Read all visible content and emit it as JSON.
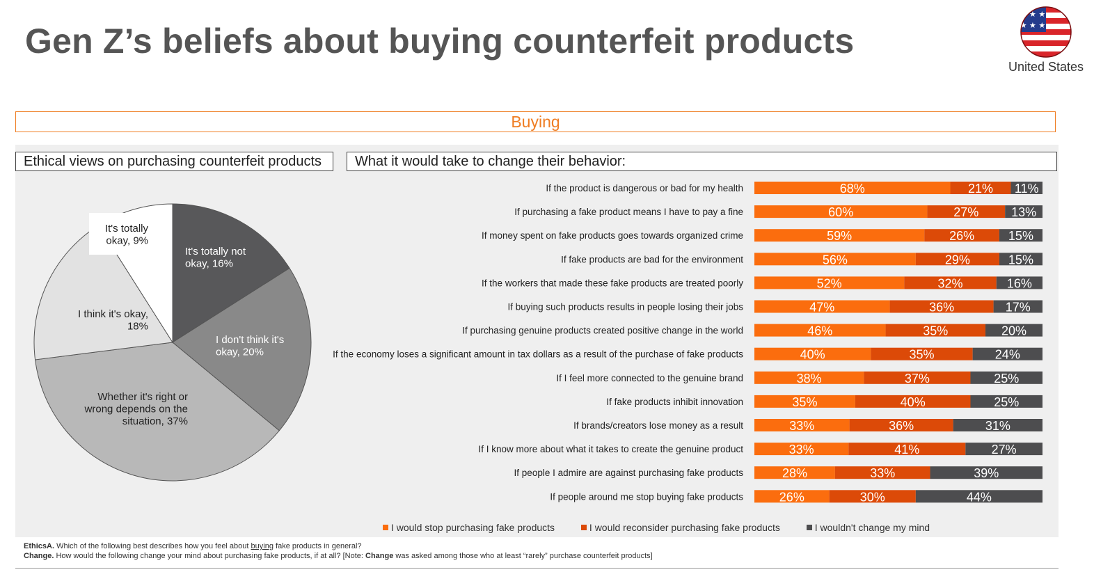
{
  "title": "Gen Z’s beliefs about buying counterfeit products",
  "country": "United States",
  "section": "Buying",
  "colors": {
    "accent": "#ef7d22",
    "stop": "#fb6d0e",
    "reconsider": "#dc4a08",
    "no_change": "#4d4d4f"
  },
  "left_panel": {
    "heading": "Ethical views on purchasing counterfeit products"
  },
  "right_panel": {
    "heading": "What it would take to change their behavior:"
  },
  "chart_data": [
    {
      "type": "pie",
      "slices": [
        {
          "label": "It's totally not okay",
          "value": 16,
          "color": "#58585a"
        },
        {
          "label": "I don't think it's okay",
          "value": 20,
          "color": "#898989"
        },
        {
          "label": "Whether it's right or wrong depends on the situation",
          "value": 37,
          "color": "#b8b8b8"
        },
        {
          "label": "I think it's okay",
          "value": 18,
          "color": "#e2e2e2"
        },
        {
          "label": "It's totally okay",
          "value": 9,
          "color": "#ffffff"
        }
      ],
      "slice_labels": [
        [
          "It's totally not",
          "okay, 16%"
        ],
        [
          "I don't think it's",
          "okay, 20%"
        ],
        [
          "Whether it's right or",
          "wrong depends on the",
          "situation, 37%"
        ],
        [
          "I think it's okay,",
          "18%"
        ],
        [
          "It's totally",
          "okay, 9%"
        ]
      ]
    },
    {
      "type": "bar",
      "orientation": "horizontal",
      "stacked": true,
      "categories": [
        "If the product is dangerous or bad for my health",
        "If purchasing a fake product means I have to pay a fine",
        "If money spent on fake products goes towards organized crime",
        "If fake products are bad for the environment",
        "If the workers that made these fake products are treated poorly",
        "If buying such products results in people losing their jobs",
        "If purchasing genuine products created positive change in the world",
        "If the economy loses a significant amount in tax dollars as a result of the purchase of fake products",
        "If I feel more connected to the genuine brand",
        "If fake products inhibit innovation",
        "If brands/creators lose money as a result",
        "If I know more about what it takes to create the genuine product",
        "If people I admire are against purchasing fake products",
        "If people around me stop buying fake products"
      ],
      "series": [
        {
          "name": "I would stop purchasing fake products",
          "color": "#fb6d0e",
          "values": [
            68,
            60,
            59,
            56,
            52,
            47,
            46,
            40,
            38,
            35,
            33,
            33,
            28,
            26
          ]
        },
        {
          "name": "I would reconsider purchasing fake products",
          "color": "#dc4a08",
          "values": [
            21,
            27,
            26,
            29,
            32,
            36,
            35,
            35,
            37,
            40,
            36,
            41,
            33,
            30
          ]
        },
        {
          "name": "I wouldn't change my mind",
          "color": "#4d4d4f",
          "values": [
            11,
            13,
            15,
            15,
            16,
            17,
            20,
            24,
            25,
            25,
            31,
            27,
            39,
            44
          ]
        }
      ],
      "value_suffix": "%"
    }
  ],
  "notes": {
    "ethics_label": "EthicsA.",
    "ethics_pre": "Which of the following best describes how you feel about",
    "ethics_underlined": "buying",
    "ethics_post": "fake products in general?",
    "change_label": "Change.",
    "change_pre": "How would the following change your mind about purchasing fake products, if at all? [Note:",
    "change_bold": "Change",
    "change_post": "was asked among those who at least “rarely” purchase counterfeit products]"
  }
}
